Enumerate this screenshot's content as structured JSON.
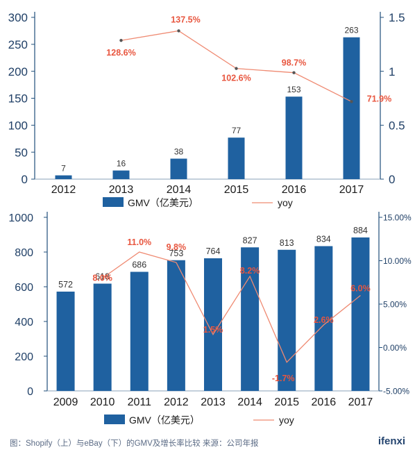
{
  "chart_data": [
    {
      "type": "bar",
      "categories": [
        "2012",
        "2013",
        "2014",
        "2015",
        "2016",
        "2017"
      ],
      "series": [
        {
          "name": "GMV（亿美元）",
          "type": "bar",
          "axis": "left",
          "values": [
            7,
            16,
            38,
            77,
            153,
            263
          ],
          "labels": [
            "7",
            "16",
            "38",
            "77",
            "153",
            "263"
          ]
        },
        {
          "name": "yoy",
          "type": "line",
          "axis": "right",
          "values": [
            null,
            1.286,
            1.375,
            1.026,
            0.987,
            0.719
          ],
          "labels": [
            "",
            "128.6%",
            "137.5%",
            "102.6%",
            "98.7%",
            "71.9%"
          ]
        }
      ],
      "left_ticks": [
        "0",
        "50",
        "100",
        "150",
        "200",
        "250",
        "300"
      ],
      "right_ticks": [
        "0",
        "0.5",
        "1",
        "1.5"
      ],
      "ylim_left": [
        0,
        300
      ],
      "ylim_right": [
        0,
        1.5
      ],
      "legend_position": "bottom",
      "colors": {
        "bar": "#1f61a0",
        "line": "#ef8a72",
        "line_label": "#e8563f",
        "axis": "#1f4e7a"
      }
    },
    {
      "type": "bar",
      "categories": [
        "2009",
        "2010",
        "2011",
        "2012",
        "2013",
        "2014",
        "2015",
        "2016",
        "2017"
      ],
      "series": [
        {
          "name": "GMV（亿美元）",
          "type": "bar",
          "axis": "left",
          "values": [
            572,
            618,
            686,
            753,
            764,
            827,
            813,
            834,
            884
          ],
          "labels": [
            "572",
            "618",
            "686",
            "753",
            "764",
            "827",
            "813",
            "834",
            "884"
          ]
        },
        {
          "name": "yoy",
          "type": "line",
          "axis": "right",
          "values": [
            null,
            0.08,
            0.11,
            0.098,
            0.015,
            0.082,
            -0.017,
            0.026,
            0.06
          ],
          "labels": [
            "",
            "8.0%",
            "11.0%",
            "9.8%",
            "1.5%",
            "8.2%",
            "-1.7%",
            "2.6%",
            "6.0%"
          ]
        }
      ],
      "left_ticks": [
        "0",
        "200",
        "400",
        "600",
        "800",
        "1000"
      ],
      "right_ticks": [
        "-5.00%",
        "0.00%",
        "5.00%",
        "10.00%",
        "15.00%"
      ],
      "ylim_left": [
        0,
        1000
      ],
      "ylim_right": [
        -0.05,
        0.15
      ],
      "legend_position": "bottom",
      "colors": {
        "bar": "#1f61a0",
        "line": "#ef8a72",
        "line_label": "#e8563f",
        "axis": "#1f4e7a"
      }
    }
  ],
  "caption": "图：Shopify（上）与eBay（下）的GMV及增长率比较 来源：公司年报",
  "brand": "ifenxi"
}
